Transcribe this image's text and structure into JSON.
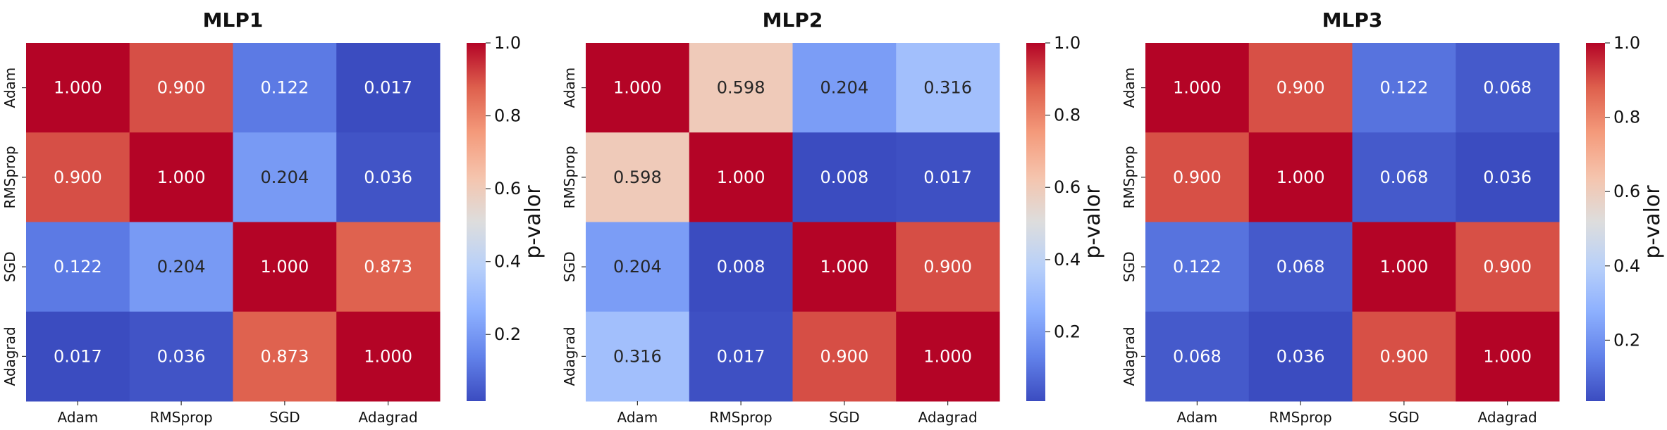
{
  "chart_data": [
    {
      "type": "heatmap",
      "title": "MLP1",
      "x_categories": [
        "Adam",
        "RMSprop",
        "SGD",
        "Adagrad"
      ],
      "y_categories": [
        "Adam",
        "RMSprop",
        "SGD",
        "Adagrad"
      ],
      "values": [
        [
          1.0,
          0.9,
          0.122,
          0.017
        ],
        [
          0.9,
          1.0,
          0.204,
          0.036
        ],
        [
          0.122,
          0.204,
          1.0,
          0.873
        ],
        [
          0.017,
          0.036,
          0.873,
          1.0
        ]
      ],
      "value_labels": [
        [
          "1.000",
          "0.900",
          "0.122",
          "0.017"
        ],
        [
          "0.900",
          "1.000",
          "0.204",
          "0.036"
        ],
        [
          "0.122",
          "0.204",
          "1.000",
          "0.873"
        ],
        [
          "0.017",
          "0.036",
          "0.873",
          "1.000"
        ]
      ],
      "colorbar": {
        "label": "p-valor",
        "ticks": [
          0.2,
          0.4,
          0.6,
          0.8,
          1.0
        ],
        "tick_labels": [
          "0.2",
          "0.4",
          "0.6",
          "0.8",
          "1.0"
        ],
        "range": [
          0.017,
          1.0
        ],
        "colormap": "coolwarm"
      }
    },
    {
      "type": "heatmap",
      "title": "MLP2",
      "x_categories": [
        "Adam",
        "RMSprop",
        "SGD",
        "Adagrad"
      ],
      "y_categories": [
        "Adam",
        "RMSprop",
        "SGD",
        "Adagrad"
      ],
      "values": [
        [
          1.0,
          0.598,
          0.204,
          0.316
        ],
        [
          0.598,
          1.0,
          0.008,
          0.017
        ],
        [
          0.204,
          0.008,
          1.0,
          0.9
        ],
        [
          0.316,
          0.017,
          0.9,
          1.0
        ]
      ],
      "value_labels": [
        [
          "1.000",
          "0.598",
          "0.204",
          "0.316"
        ],
        [
          "0.598",
          "1.000",
          "0.008",
          "0.017"
        ],
        [
          "0.204",
          "0.008",
          "1.000",
          "0.900"
        ],
        [
          "0.316",
          "0.017",
          "0.900",
          "1.000"
        ]
      ],
      "colorbar": {
        "label": "p-valor",
        "ticks": [
          0.2,
          0.4,
          0.6,
          0.8,
          1.0
        ],
        "tick_labels": [
          "0.2",
          "0.4",
          "0.6",
          "0.8",
          "1.0"
        ],
        "range": [
          0.008,
          1.0
        ],
        "colormap": "coolwarm"
      }
    },
    {
      "type": "heatmap",
      "title": "MLP3",
      "x_categories": [
        "Adam",
        "RMSprop",
        "SGD",
        "Adagrad"
      ],
      "y_categories": [
        "Adam",
        "RMSprop",
        "SGD",
        "Adagrad"
      ],
      "values": [
        [
          1.0,
          0.9,
          0.122,
          0.068
        ],
        [
          0.9,
          1.0,
          0.068,
          0.036
        ],
        [
          0.122,
          0.068,
          1.0,
          0.9
        ],
        [
          0.068,
          0.036,
          0.9,
          1.0
        ]
      ],
      "value_labels": [
        [
          "1.000",
          "0.900",
          "0.122",
          "0.068"
        ],
        [
          "0.900",
          "1.000",
          "0.068",
          "0.036"
        ],
        [
          "0.122",
          "0.068",
          "1.000",
          "0.900"
        ],
        [
          "0.068",
          "0.036",
          "0.900",
          "1.000"
        ]
      ],
      "colorbar": {
        "label": "p-valor",
        "ticks": [
          0.2,
          0.4,
          0.6,
          0.8,
          1.0
        ],
        "tick_labels": [
          "0.2",
          "0.4",
          "0.6",
          "0.8",
          "1.0"
        ],
        "range": [
          0.036,
          1.0
        ],
        "colormap": "coolwarm"
      }
    }
  ]
}
